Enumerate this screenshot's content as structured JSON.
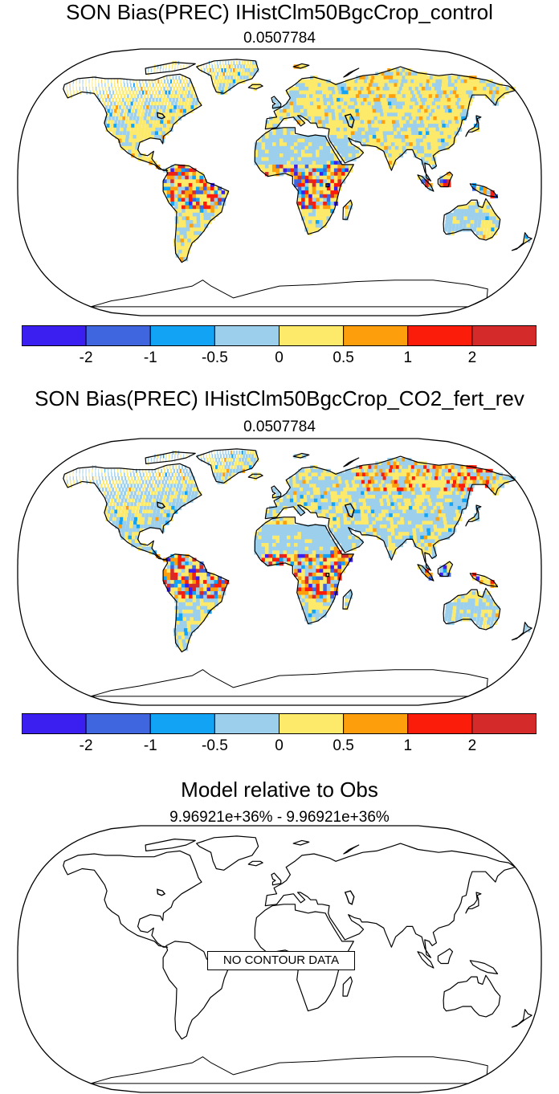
{
  "panels": [
    {
      "title": "SON Bias(PREC) IHistClm50BgcCrop_control",
      "subtitle": "0.0507784",
      "has_data": true,
      "variant": 0
    },
    {
      "title": "SON Bias(PREC) IHistClm50BgcCrop_CO2_fert_rev",
      "subtitle": "0.0507784",
      "has_data": true,
      "variant": 1
    },
    {
      "title": "Model relative to Obs",
      "subtitle": "9.96921e+36% - 9.96921e+36%",
      "has_data": false,
      "no_data_label": "NO CONTOUR DATA"
    }
  ],
  "colorbar": {
    "colors": [
      "#3a1ff0",
      "#3f66de",
      "#13a3f5",
      "#9ccfeb",
      "#fde96a",
      "#fd9f0d",
      "#fb1c0a",
      "#d42a2a"
    ],
    "tick_labels": [
      "-2",
      "-1",
      "-0.5",
      "0",
      "0.5",
      "1",
      "2"
    ]
  },
  "chart_data": [
    {
      "type": "heatmap",
      "map_projection": "robinson",
      "title": "SON Bias(PREC) IHistClm50BgcCrop_control",
      "subtitle": "0.0507784",
      "levels": [
        -2,
        -1,
        -0.5,
        0,
        0.5,
        1,
        2
      ],
      "colors": [
        "#3a1ff0",
        "#3f66de",
        "#13a3f5",
        "#9ccfeb",
        "#fde96a",
        "#fd9f0d",
        "#fb1c0a",
        "#d42a2a"
      ]
    },
    {
      "type": "heatmap",
      "map_projection": "robinson",
      "title": "SON Bias(PREC) IHistClm50BgcCrop_CO2_fert_rev",
      "subtitle": "0.0507784",
      "levels": [
        -2,
        -1,
        -0.5,
        0,
        0.5,
        1,
        2
      ],
      "colors": [
        "#3a1ff0",
        "#3f66de",
        "#13a3f5",
        "#9ccfeb",
        "#fde96a",
        "#fd9f0d",
        "#fb1c0a",
        "#d42a2a"
      ]
    },
    {
      "type": "heatmap",
      "map_projection": "robinson",
      "title": "Model relative to Obs",
      "subtitle": "9.96921e+36% - 9.96921e+36%",
      "annotation": "NO CONTOUR DATA"
    }
  ]
}
